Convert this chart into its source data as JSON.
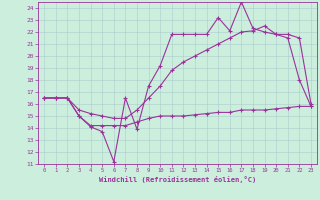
{
  "xlabel": "Windchill (Refroidissement éolien,°C)",
  "bg_color": "#cceedd",
  "line_color": "#993399",
  "xlim": [
    -0.5,
    23.5
  ],
  "ylim": [
    11,
    24.5
  ],
  "yticks": [
    11,
    12,
    13,
    14,
    15,
    16,
    17,
    18,
    19,
    20,
    21,
    22,
    23,
    24
  ],
  "xticks": [
    0,
    1,
    2,
    3,
    4,
    5,
    6,
    7,
    8,
    9,
    10,
    11,
    12,
    13,
    14,
    15,
    16,
    17,
    18,
    19,
    20,
    21,
    22,
    23
  ],
  "series1_x": [
    0,
    1,
    2,
    3,
    4,
    5,
    6,
    7,
    8,
    9,
    10,
    11,
    12,
    13,
    14,
    15,
    16,
    17,
    18,
    19,
    20,
    21,
    22,
    23
  ],
  "series1_y": [
    16.5,
    16.5,
    16.5,
    15.0,
    14.1,
    13.7,
    11.2,
    16.5,
    13.9,
    17.5,
    19.2,
    21.8,
    21.8,
    21.8,
    21.8,
    23.2,
    22.1,
    24.5,
    22.3,
    22.0,
    21.8,
    21.5,
    18.0,
    15.8
  ],
  "series2_x": [
    0,
    1,
    2,
    3,
    4,
    5,
    6,
    7,
    8,
    9,
    10,
    11,
    12,
    13,
    14,
    15,
    16,
    17,
    18,
    19,
    20,
    21,
    22,
    23
  ],
  "series2_y": [
    16.5,
    16.5,
    16.5,
    15.0,
    14.2,
    14.2,
    14.2,
    14.2,
    14.5,
    14.8,
    15.0,
    15.0,
    15.0,
    15.1,
    15.2,
    15.3,
    15.3,
    15.5,
    15.5,
    15.5,
    15.6,
    15.7,
    15.8,
    15.8
  ],
  "series3_x": [
    0,
    1,
    2,
    3,
    4,
    5,
    6,
    7,
    8,
    9,
    10,
    11,
    12,
    13,
    14,
    15,
    16,
    17,
    18,
    19,
    20,
    21,
    22,
    23
  ],
  "series3_y": [
    16.5,
    16.5,
    16.5,
    15.5,
    15.2,
    15.0,
    14.8,
    14.8,
    15.5,
    16.5,
    17.5,
    18.8,
    19.5,
    20.0,
    20.5,
    21.0,
    21.5,
    22.0,
    22.1,
    22.5,
    21.8,
    21.8,
    21.5,
    16.0
  ]
}
